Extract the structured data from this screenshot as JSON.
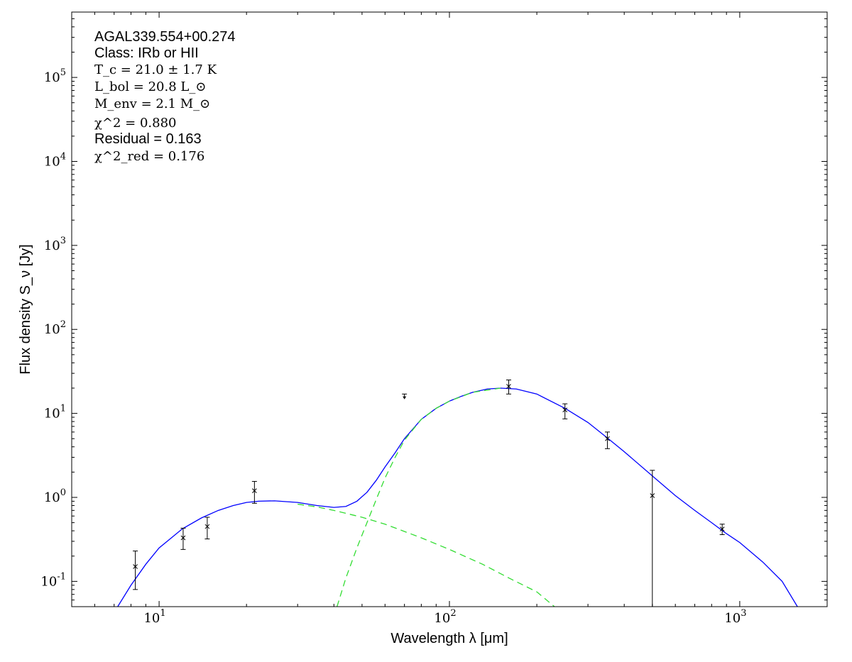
{
  "chart_data": {
    "type": "scatter",
    "title": "",
    "xlabel": "Wavelength λ [μm]",
    "ylabel": "Flux density S_ν [Jy]",
    "xscale": "log",
    "yscale": "log",
    "xlim": [
      5,
      2000
    ],
    "ylim": [
      0.05,
      600000
    ],
    "xticks": [
      {
        "value": 10,
        "label": "10^1"
      },
      {
        "value": 100,
        "label": "10^2"
      },
      {
        "value": 1000,
        "label": "10^3"
      }
    ],
    "yticks": [
      {
        "value": 0.1,
        "label": "10^-1"
      },
      {
        "value": 1,
        "label": "10^0"
      },
      {
        "value": 10,
        "label": "10^1"
      },
      {
        "value": 100,
        "label": "10^2"
      },
      {
        "value": 1000,
        "label": "10^3"
      },
      {
        "value": 10000,
        "label": "10^4"
      },
      {
        "value": 100000,
        "label": "10^5"
      }
    ],
    "grid": false,
    "annotations": {
      "source": "AGAL339.554+00.274",
      "class": "Class: IRb or HII",
      "tc": "T_c = 21.0 ± 1.7 K",
      "lbol": "L_bol = 20.8 L_⊙",
      "menv": "M_env = 2.1 M_⊙",
      "chi2": "χ^2 = 0.880",
      "residual": "Residual = 0.163",
      "chi2red": "χ^2_red = 0.176"
    },
    "data_points": [
      {
        "x": 8.28,
        "y": 0.15,
        "ylo": 0.08,
        "yhi": 0.23
      },
      {
        "x": 12.1,
        "y": 0.33,
        "ylo": 0.24,
        "yhi": 0.43
      },
      {
        "x": 14.65,
        "y": 0.45,
        "ylo": 0.32,
        "yhi": 0.58
      },
      {
        "x": 21.3,
        "y": 1.2,
        "ylo": 0.85,
        "yhi": 1.55
      },
      {
        "x": 160,
        "y": 21,
        "ylo": 17,
        "yhi": 25
      },
      {
        "x": 250,
        "y": 11,
        "ylo": 8.6,
        "yhi": 13
      },
      {
        "x": 350,
        "y": 5.0,
        "ylo": 3.8,
        "yhi": 6.0
      },
      {
        "x": 500,
        "y": 1.05,
        "ylo": 0.05,
        "yhi": 2.1
      },
      {
        "x": 870,
        "y": 0.42,
        "ylo": 0.36,
        "yhi": 0.48
      }
    ],
    "upper_limits": [
      {
        "x": 70,
        "y": 17,
        "to": 15
      }
    ],
    "series": [
      {
        "role": "total fit",
        "style": "solid",
        "color": "#0000ff",
        "points": [
          [
            7.2,
            0.05
          ],
          [
            8,
            0.09
          ],
          [
            9,
            0.16
          ],
          [
            10,
            0.25
          ],
          [
            12,
            0.42
          ],
          [
            14,
            0.57
          ],
          [
            16,
            0.7
          ],
          [
            18,
            0.8
          ],
          [
            20,
            0.87
          ],
          [
            22,
            0.9
          ],
          [
            25,
            0.91
          ],
          [
            30,
            0.87
          ],
          [
            35,
            0.8
          ],
          [
            40,
            0.76
          ],
          [
            44,
            0.78
          ],
          [
            48,
            0.9
          ],
          [
            52,
            1.15
          ],
          [
            56,
            1.6
          ],
          [
            60,
            2.3
          ],
          [
            65,
            3.4
          ],
          [
            70,
            5
          ],
          [
            80,
            8.5
          ],
          [
            90,
            11.5
          ],
          [
            100,
            14
          ],
          [
            110,
            16
          ],
          [
            120,
            17.8
          ],
          [
            135,
            19.5
          ],
          [
            150,
            20
          ],
          [
            170,
            19.5
          ],
          [
            200,
            17
          ],
          [
            250,
            11.5
          ],
          [
            300,
            7.8
          ],
          [
            350,
            5.1
          ],
          [
            400,
            3.5
          ],
          [
            500,
            1.8
          ],
          [
            600,
            1.05
          ],
          [
            700,
            0.7
          ],
          [
            800,
            0.5
          ],
          [
            900,
            0.37
          ],
          [
            1000,
            0.29
          ],
          [
            1200,
            0.17
          ],
          [
            1400,
            0.1
          ],
          [
            1580,
            0.05
          ]
        ]
      },
      {
        "role": "warm component",
        "style": "dashed",
        "color": "#33dd33",
        "points": [
          [
            30,
            0.83
          ],
          [
            35,
            0.77
          ],
          [
            40,
            0.7
          ],
          [
            50,
            0.58
          ],
          [
            60,
            0.48
          ],
          [
            80,
            0.33
          ],
          [
            100,
            0.24
          ],
          [
            130,
            0.16
          ],
          [
            160,
            0.11
          ],
          [
            200,
            0.075
          ],
          [
            230,
            0.05
          ]
        ]
      },
      {
        "role": "cold component",
        "style": "dashed",
        "color": "#33dd33",
        "points": [
          [
            41,
            0.05
          ],
          [
            44,
            0.11
          ],
          [
            48,
            0.25
          ],
          [
            52,
            0.5
          ],
          [
            56,
            0.95
          ],
          [
            60,
            1.7
          ],
          [
            65,
            3
          ],
          [
            70,
            4.8
          ],
          [
            80,
            8.5
          ],
          [
            90,
            11.5
          ],
          [
            100,
            14
          ],
          [
            120,
            17.8
          ],
          [
            150,
            20
          ]
        ]
      }
    ]
  }
}
